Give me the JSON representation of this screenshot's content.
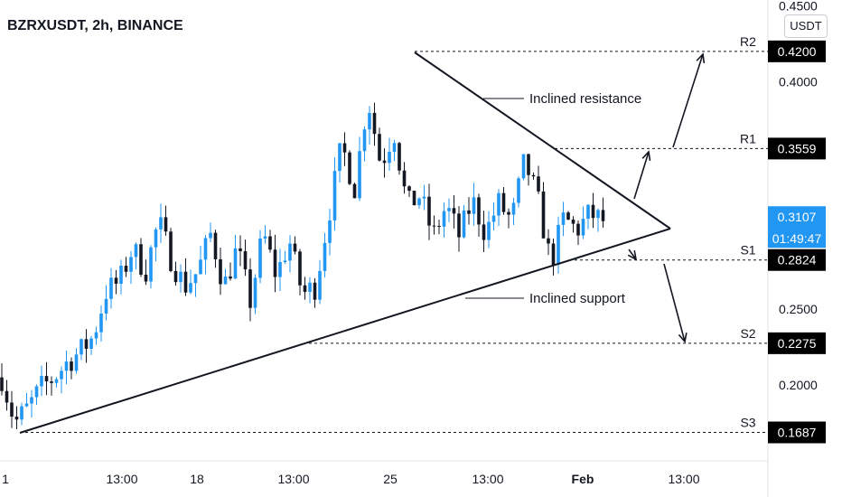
{
  "header": {
    "symbol_title": "BZRXUSDT, 2h, BINANCE",
    "currency_button": "USDT"
  },
  "chart_data": {
    "type": "candlestick",
    "symbol": "BZRXUSDT",
    "interval": "2h",
    "exchange": "BINANCE",
    "y_axis": {
      "range": [
        0.155,
        0.455
      ],
      "tick_labels": [
        "0.4500",
        "0.4000",
        "0.2500",
        "0.2000"
      ],
      "tick_values": [
        0.45,
        0.4,
        0.25,
        0.2
      ]
    },
    "x_axis": {
      "tick_labels": [
        "1",
        "13:00",
        "18",
        "13:00",
        "25",
        "13:00",
        "Feb",
        "13:00"
      ],
      "bold_label": "Feb"
    },
    "price_levels": [
      {
        "label": "R2",
        "value": 0.42,
        "text": "0.4200"
      },
      {
        "label": "R1",
        "value": 0.3559,
        "text": "0.3559"
      },
      {
        "label": "S1",
        "value": 0.2824,
        "text": "0.2824"
      },
      {
        "label": "S2",
        "value": 0.2275,
        "text": "0.2275"
      },
      {
        "label": "S3",
        "value": 0.1687,
        "text": "0.1687"
      }
    ],
    "current_price": {
      "value": 0.3107,
      "text": "0.3107",
      "countdown": "01:49:47"
    },
    "annotations": {
      "resistance_label": "Inclined resistance",
      "support_label": "Inclined support"
    },
    "price_path": [
      0.205,
      0.175,
      0.185,
      0.198,
      0.205,
      0.215,
      0.222,
      0.232,
      0.262,
      0.268,
      0.29,
      0.275,
      0.308,
      0.282,
      0.265,
      0.275,
      0.3,
      0.265,
      0.29,
      0.255,
      0.3,
      0.272,
      0.295,
      0.26,
      0.265,
      0.312,
      0.358,
      0.33,
      0.39,
      0.345,
      0.368,
      0.318,
      0.325,
      0.298,
      0.318,
      0.298,
      0.322,
      0.3,
      0.32,
      0.308,
      0.348,
      0.322,
      0.28,
      0.31,
      0.302,
      0.313,
      0.308
    ],
    "colors": {
      "up_candle": "#2196f3",
      "down_candle": "#131722",
      "level_line": "#131722",
      "price_tag_bg": "#000000",
      "current_tag_bg": "#2196f3"
    }
  }
}
